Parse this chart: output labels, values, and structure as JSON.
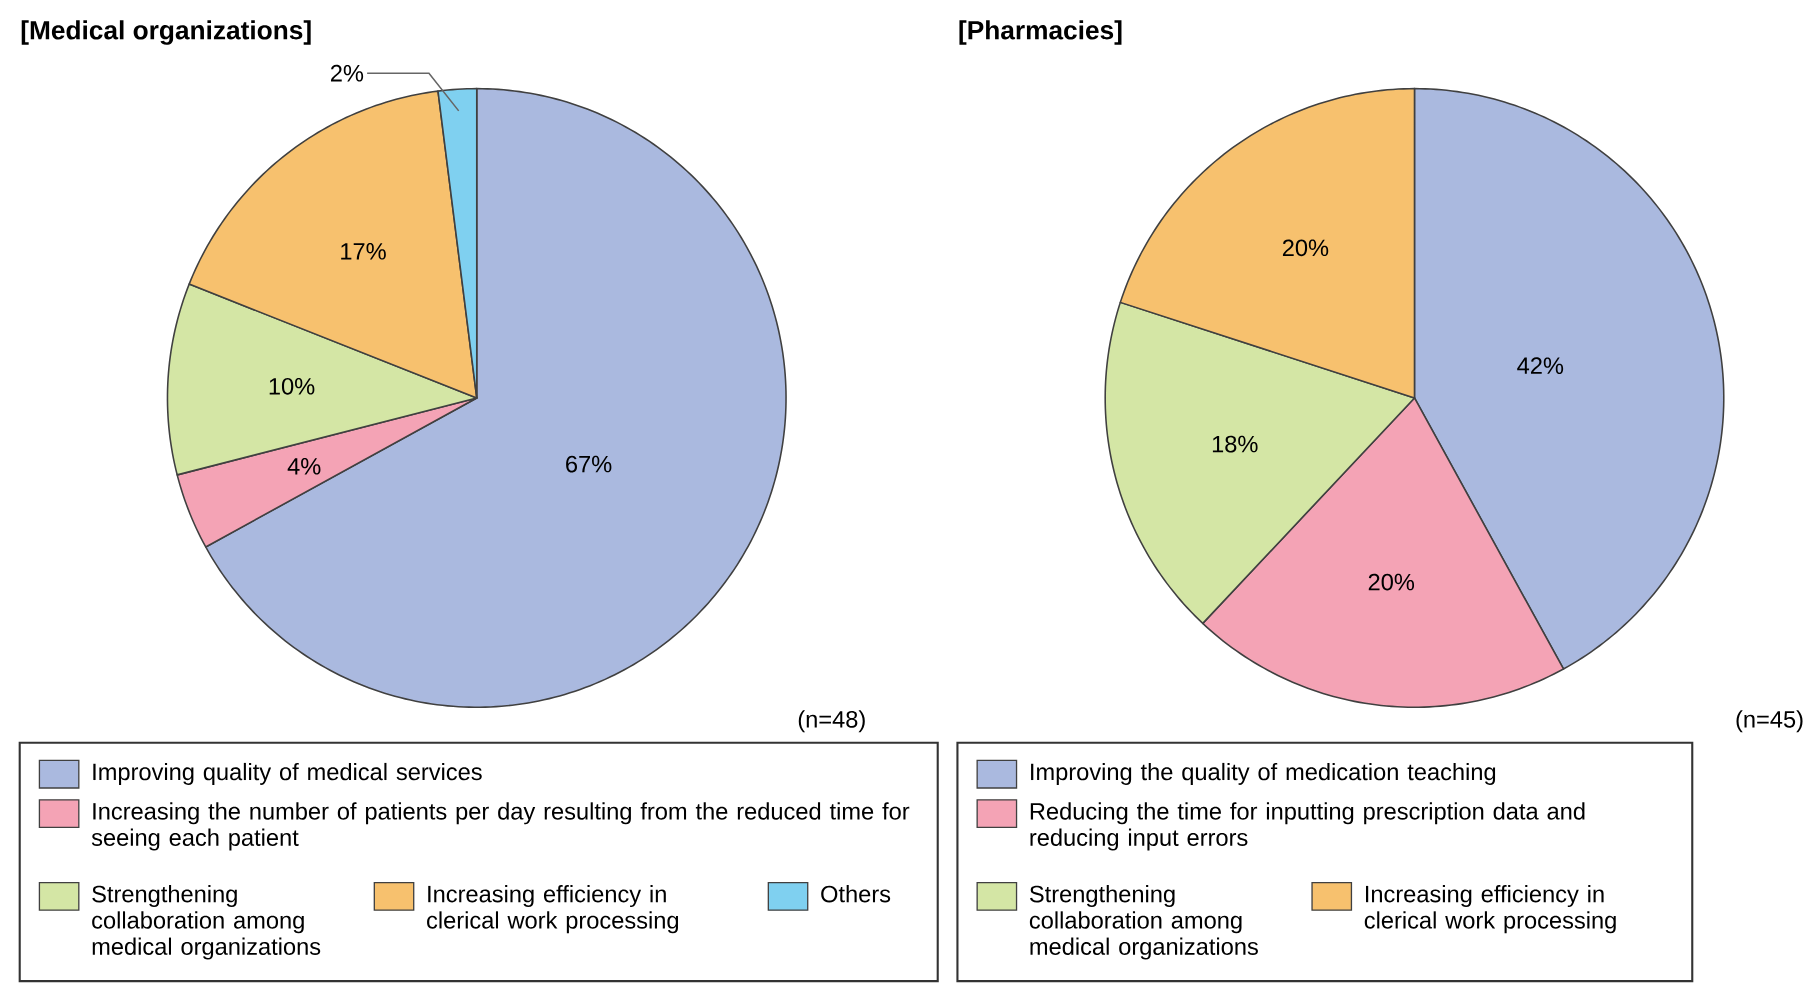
{
  "chart_data": [
    {
      "type": "pie",
      "title": "[Medical organizations]",
      "legend": "bottom",
      "categories": [
        "Improving quality of medical services",
        "Increasing the number of patients per day resulting from the reduced time for seeing each patient",
        "Strengthening collaboration among medical organizations",
        "Increasing efficiency in clerical work processing",
        "Others"
      ],
      "values": [
        67,
        4,
        10,
        17,
        2
      ],
      "value_labels": [
        "67%",
        "4%",
        "10%",
        "17%",
        "2%"
      ],
      "colors": [
        "#aab9df",
        "#f4a3b5",
        "#d4e6a5",
        "#f7c16e",
        "#7fd0f0"
      ],
      "annotations": [
        "(n=48)"
      ]
    },
    {
      "type": "pie",
      "title": "[Pharmacies]",
      "legend": "bottom",
      "categories": [
        "Improving the quality of medication teaching",
        "Reducing the time for inputting prescription data and reducing input errors",
        "Strengthening collaboration among medical organizations",
        "Increasing efficiency in clerical work processing"
      ],
      "values": [
        42,
        20,
        18,
        20
      ],
      "value_labels": [
        "42%",
        "20%",
        "18%",
        "20%"
      ],
      "colors": [
        "#aab9df",
        "#f4a3b5",
        "#d4e6a5",
        "#f7c16e"
      ],
      "annotations": [
        "(n=45)"
      ]
    }
  ]
}
